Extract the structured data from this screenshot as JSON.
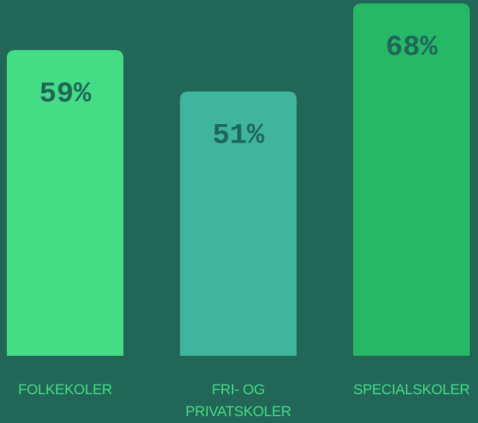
{
  "chart_data": {
    "type": "bar",
    "categories": [
      "FOLKEKOLER",
      "FRI- OG PRIVATSKOLER",
      "SPECIALSKOLER"
    ],
    "values": [
      59,
      51,
      68
    ],
    "value_labels": [
      "59%",
      "51%",
      "68%"
    ],
    "colors": [
      "#45dc86",
      "#3fb59d",
      "#26b866"
    ]
  }
}
